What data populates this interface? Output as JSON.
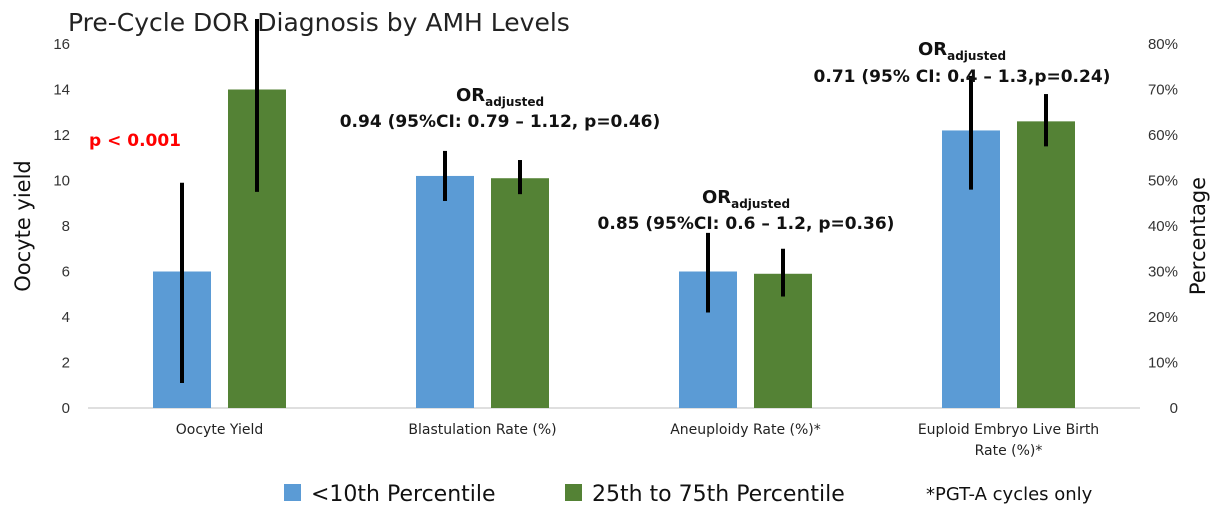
{
  "chart_data": {
    "type": "bar",
    "title": "Pre-Cycle DOR Diagnosis by AMH Levels",
    "ylabel": "Oocyte yield",
    "y2label": "Percentage",
    "ylim": [
      0,
      16
    ],
    "yticks": [
      "0",
      "2",
      "4",
      "6",
      "8",
      "10",
      "12",
      "14",
      "16"
    ],
    "y2ticks": [
      "0",
      "10%",
      "20%",
      "30%",
      "40%",
      "50%",
      "60%",
      "70%",
      "80%"
    ],
    "categories": [
      {
        "lines": [
          "Oocyte Yield"
        ]
      },
      {
        "lines": [
          "Blastulation Rate (%)"
        ]
      },
      {
        "lines": [
          "Aneuploidy Rate (%)*"
        ]
      },
      {
        "lines": [
          "Euploid Embryo Live Birth",
          "Rate (%)*"
        ]
      }
    ],
    "series": [
      {
        "name": "<10th Percentile",
        "color": "#5b9bd5",
        "values": [
          6.0,
          10.2,
          6.0,
          12.2
        ],
        "error_low": [
          1.1,
          9.1,
          4.2,
          9.6
        ],
        "error_high": [
          9.9,
          11.3,
          7.7,
          14.6
        ]
      },
      {
        "name": "25th to 75th Percentile",
        "color": "#548235",
        "values": [
          14.0,
          10.1,
          5.9,
          12.6
        ],
        "error_low": [
          9.5,
          9.4,
          4.9,
          11.5
        ],
        "error_high": [
          17.1,
          10.9,
          7.0,
          13.8
        ]
      }
    ],
    "annotations": [
      {
        "category": 0,
        "type": "pvalue",
        "text": "p < 0.001",
        "color": "#ff0000"
      },
      {
        "category": 1,
        "or_main": "OR",
        "or_sub": "adjusted",
        "text": "0.94 (95%CI: 0.79 – 1.12, p=0.46)"
      },
      {
        "category": 2,
        "or_main": "OR",
        "or_sub": "adjusted",
        "text": "0.85 (95%CI: 0.6 – 1.2, p=0.36)"
      },
      {
        "category": 3,
        "or_main": "OR",
        "or_sub": "adjusted",
        "text": "0.71 (95% CI: 0.4 – 1.3,p=0.24)"
      }
    ],
    "legend_note": "*PGT-A cycles only",
    "legend_position": "bottom",
    "grid": false
  }
}
